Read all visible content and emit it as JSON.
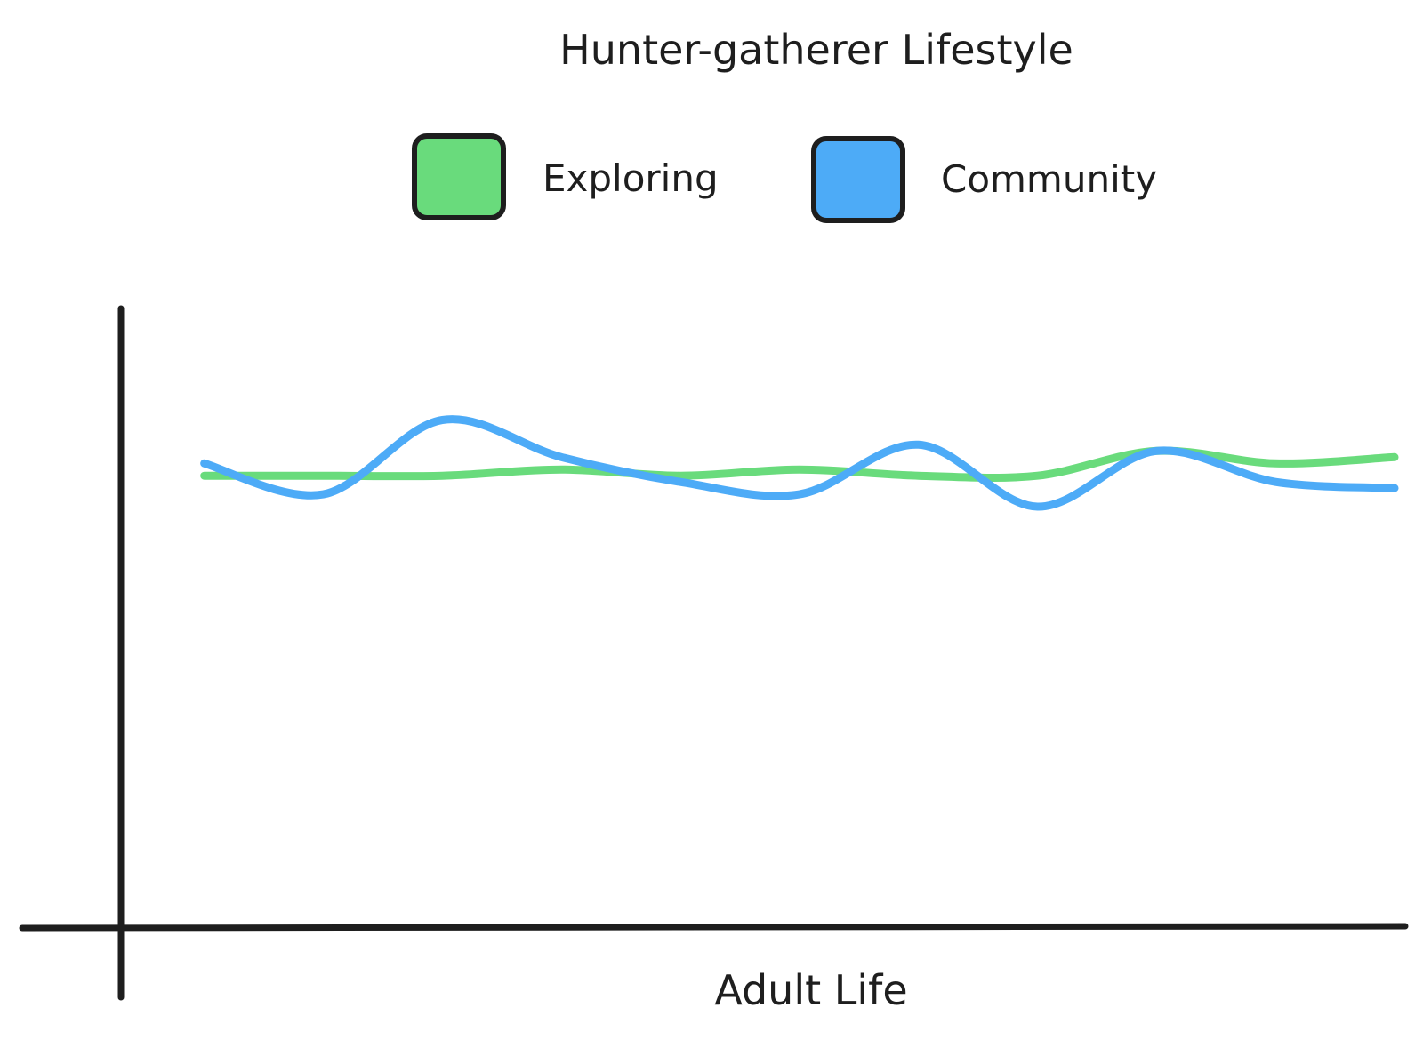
{
  "chart_data": {
    "type": "line",
    "title": "Hunter-gatherer Lifestyle",
    "xlabel": "Adult Life",
    "ylabel": "",
    "x": [
      0,
      10,
      20,
      30,
      40,
      50,
      60,
      70,
      80,
      90,
      100
    ],
    "xlim": [
      -7,
      100
    ],
    "ylim": [
      0,
      100
    ],
    "grid": false,
    "legend_position": "top",
    "series": [
      {
        "name": "Exploring",
        "color": "#69db7c",
        "values": [
          73,
          73,
          73,
          74,
          73,
          74,
          73,
          73,
          77,
          75,
          76
        ]
      },
      {
        "name": "Community",
        "color": "#4dabf7",
        "values": [
          75,
          70,
          82,
          76,
          72,
          70,
          78,
          68,
          77,
          72,
          71
        ]
      }
    ]
  }
}
